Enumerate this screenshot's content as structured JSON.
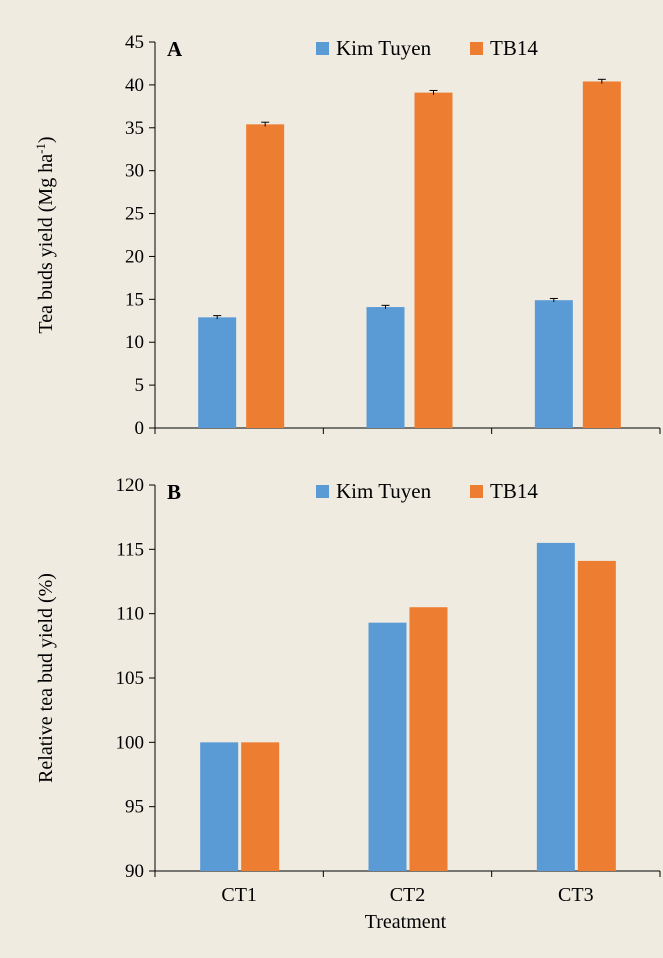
{
  "chart_data": [
    {
      "type": "bar",
      "panel_label": "A",
      "categories": [
        "CT1",
        "CT2",
        "CT3"
      ],
      "series": [
        {
          "name": "Kim Tuyen",
          "values": [
            12.9,
            14.1,
            14.9
          ],
          "errors": [
            0.2,
            0.2,
            0.2
          ]
        },
        {
          "name": "TB14",
          "values": [
            35.4,
            39.1,
            40.4
          ],
          "errors": [
            0.25,
            0.25,
            0.25
          ]
        }
      ],
      "colors": [
        "#5b9bd5",
        "#ed7d31"
      ],
      "ylabel_main": "Tea buds yield (Mg ha",
      "ylabel_sup": "-1",
      "ylabel_end": ")",
      "xlabel": "",
      "ylim": [
        0,
        45
      ],
      "yticks": [
        0,
        5,
        10,
        15,
        20,
        25,
        30,
        35,
        40,
        45
      ],
      "show_category_labels": false,
      "legend": "top",
      "grid": false
    },
    {
      "type": "bar",
      "panel_label": "B",
      "categories": [
        "CT1",
        "CT2",
        "CT3"
      ],
      "series": [
        {
          "name": "Kim Tuyen",
          "values": [
            100.0,
            109.3,
            115.5
          ]
        },
        {
          "name": "TB14",
          "values": [
            100.0,
            110.5,
            114.1
          ]
        }
      ],
      "colors": [
        "#5b9bd5",
        "#ed7d31"
      ],
      "ylabel_main": "Relative tea bud yield (%)",
      "ylabel_sup": "",
      "ylabel_end": "",
      "xlabel": "Treatment",
      "ylim": [
        90,
        120
      ],
      "yticks": [
        90,
        95,
        100,
        105,
        110,
        115,
        120
      ],
      "show_category_labels": true,
      "legend": "top",
      "grid": false
    }
  ]
}
